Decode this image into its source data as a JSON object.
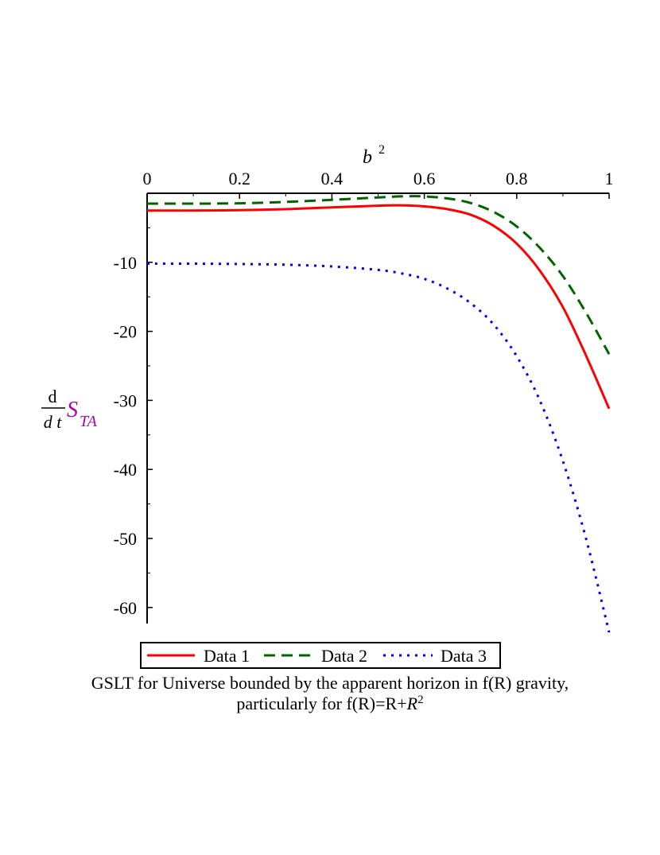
{
  "chart_data": {
    "type": "line",
    "xlabel": "b",
    "xlabel_superscript": "2",
    "ylabel": {
      "numerator": "d",
      "denominator": "d t",
      "symbol": "S",
      "subscript": "TA"
    },
    "xlim": [
      0,
      1
    ],
    "ylim": [
      -64,
      0
    ],
    "x_axis_position": "top",
    "grid": false,
    "legend_position": "bottom",
    "xticks": [
      "0",
      "0.2",
      "0.4",
      "0.6",
      "0.8",
      "1"
    ],
    "xtick_values": [
      0,
      0.2,
      0.4,
      0.6,
      0.8,
      1
    ],
    "yticks": [
      "-10",
      "-20",
      "-30",
      "-40",
      "-50",
      "-60"
    ],
    "ytick_values": [
      -10,
      -20,
      -30,
      -40,
      -50,
      -60
    ],
    "x": [
      0,
      0.1,
      0.2,
      0.3,
      0.4,
      0.5,
      0.55,
      0.6,
      0.65,
      0.7,
      0.75,
      0.8,
      0.85,
      0.9,
      0.95,
      1.0
    ],
    "series": [
      {
        "name": "Data 1",
        "color": "#ff0000",
        "dash": "solid",
        "values": [
          -2.5,
          -2.5,
          -2.45,
          -2.3,
          -2.05,
          -1.8,
          -1.75,
          -1.9,
          -2.3,
          -3.1,
          -4.7,
          -7.3,
          -11.2,
          -16.5,
          -23.5,
          -31.2
        ]
      },
      {
        "name": "Data 2",
        "color": "#006400",
        "dash": "dashed",
        "values": [
          -1.5,
          -1.5,
          -1.45,
          -1.25,
          -0.95,
          -0.6,
          -0.45,
          -0.45,
          -0.75,
          -1.4,
          -2.7,
          -4.8,
          -7.9,
          -12.0,
          -17.3,
          -23.3
        ]
      },
      {
        "name": "Data 3",
        "color": "#0000ff",
        "dash": "dotted",
        "values": [
          -10.2,
          -10.2,
          -10.25,
          -10.35,
          -10.6,
          -11.1,
          -11.6,
          -12.4,
          -13.8,
          -15.9,
          -19.0,
          -23.6,
          -30.0,
          -38.8,
          -50.0,
          -63.6
        ]
      }
    ],
    "caption_line1": "GSLT for Universe bounded by the apparent horizon in f(R) gravity,",
    "caption_line2_prefix": "particularly for f(R)=R+",
    "caption_line2_var": "R",
    "caption_line2_sup": "2"
  }
}
